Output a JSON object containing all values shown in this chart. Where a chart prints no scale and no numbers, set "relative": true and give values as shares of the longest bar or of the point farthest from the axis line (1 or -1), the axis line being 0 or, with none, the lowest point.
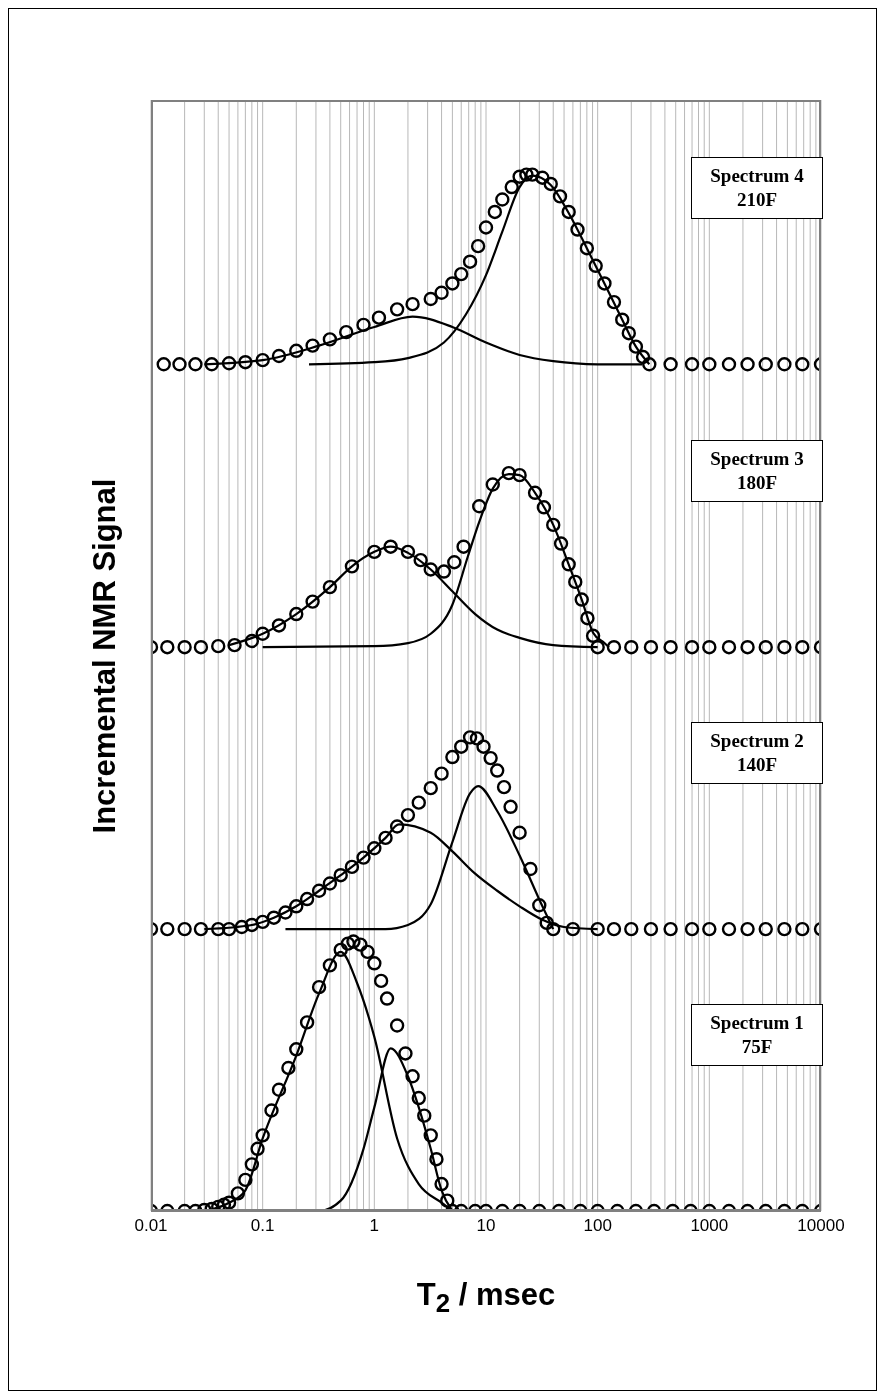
{
  "chart_data": {
    "type": "scatter",
    "relative": true,
    "xlabel": "T$_{2}$ / msec",
    "ylabel": "Incremental NMR Signal",
    "log": "x",
    "grid": "x",
    "xlim": [
      0.01,
      10000
    ],
    "xticks": [
      0.01,
      {
        "value": 0.02,
        "label": null
      },
      {
        "value": 0.03,
        "label": null
      },
      {
        "value": 0.04,
        "label": null
      },
      {
        "value": 0.05,
        "label": null
      },
      {
        "value": 0.06,
        "label": null
      },
      {
        "value": 0.07,
        "label": null
      },
      {
        "value": 0.08,
        "label": null
      },
      {
        "value": 0.09,
        "label": null
      },
      0.1,
      {
        "value": 0.2,
        "label": null
      },
      {
        "value": 0.3,
        "label": null
      },
      {
        "value": 0.4,
        "label": null
      },
      {
        "value": 0.5,
        "label": null
      },
      {
        "value": 0.6,
        "label": null
      },
      {
        "value": 0.7,
        "label": null
      },
      {
        "value": 0.8,
        "label": null
      },
      {
        "value": 0.9,
        "label": null
      },
      1,
      {
        "value": 2,
        "label": null
      },
      {
        "value": 3,
        "label": null
      },
      {
        "value": 4,
        "label": null
      },
      {
        "value": 5,
        "label": null
      },
      {
        "value": 6,
        "label": null
      },
      {
        "value": 7,
        "label": null
      },
      {
        "value": 8,
        "label": null
      },
      {
        "value": 9,
        "label": null
      },
      10,
      {
        "value": 20,
        "label": null
      },
      {
        "value": 30,
        "label": null
      },
      {
        "value": 40,
        "label": null
      },
      {
        "value": 50,
        "label": null
      },
      {
        "value": 60,
        "label": null
      },
      {
        "value": 70,
        "label": null
      },
      {
        "value": 80,
        "label": null
      },
      {
        "value": 90,
        "label": null
      },
      100,
      {
        "value": 200,
        "label": null
      },
      {
        "value": 300,
        "label": null
      },
      {
        "value": 400,
        "label": null
      },
      {
        "value": 500,
        "label": null
      },
      {
        "value": 600,
        "label": null
      },
      {
        "value": 700,
        "label": null
      },
      {
        "value": 800,
        "label": null
      },
      {
        "value": 900,
        "label": null
      },
      1000,
      {
        "value": 2000,
        "label": null
      },
      {
        "value": 3000,
        "label": null
      },
      {
        "value": 4000,
        "label": null
      },
      {
        "value": 5000,
        "label": null
      },
      {
        "value": 6000,
        "label": null
      },
      {
        "value": 7000,
        "label": null
      },
      {
        "value": 8000,
        "label": null
      },
      {
        "value": 9000,
        "label": null
      },
      10000
    ],
    "annotations": [
      "Spectrum 4\n210F",
      "Spectrum 3\n180F",
      "Spectrum 2\n140F",
      "Spectrum 1\n75F"
    ],
    "series": [
      {
        "marker": "circle",
        "color": "#000000",
        "x": [
          0.013,
          0.018,
          0.025,
          0.035,
          0.05,
          0.07,
          0.1,
          0.14,
          0.2,
          0.28,
          0.4,
          0.56,
          0.8,
          1.1,
          1.6,
          2.2,
          3.2,
          4,
          5,
          6,
          7.2,
          8.5,
          10,
          12,
          14,
          17,
          20,
          23,
          26,
          32,
          38,
          46,
          55,
          66,
          80,
          96,
          115,
          140,
          166,
          190,
          220,
          255,
          290,
          450,
          700,
          1000,
          1500,
          2200,
          3200,
          4700,
          6800,
          10000
        ],
        "values": [
          0.817,
          0.817,
          0.817,
          0.817,
          0.818,
          0.819,
          0.821,
          0.825,
          0.83,
          0.835,
          0.841,
          0.848,
          0.855,
          0.862,
          0.87,
          0.875,
          0.88,
          0.886,
          0.895,
          0.904,
          0.916,
          0.931,
          0.949,
          0.964,
          0.976,
          0.988,
          0.998,
          1.0,
          1.0,
          0.997,
          0.991,
          0.979,
          0.964,
          0.947,
          0.929,
          0.912,
          0.895,
          0.877,
          0.86,
          0.847,
          0.834,
          0.824,
          0.817,
          0.817,
          0.817,
          0.817,
          0.817,
          0.817,
          0.817,
          0.817,
          0.817,
          0.817
        ]
      },
      {
        "type": "line",
        "marker": "none",
        "color": "#000000",
        "x": [
          0.03,
          0.1,
          0.32,
          1,
          2.2,
          5,
          10,
          20,
          40,
          100,
          250
        ],
        "values": [
          0.817,
          0.821,
          0.835,
          0.853,
          0.863,
          0.853,
          0.838,
          0.826,
          0.82,
          0.817,
          0.817
        ]
      },
      {
        "type": "line",
        "marker": "none",
        "color": "#000000",
        "x": [
          0.26,
          1,
          2,
          4.2,
          6.6,
          10,
          14,
          20,
          26,
          38,
          55,
          80,
          115,
          166,
          220,
          290
        ],
        "values": [
          0.817,
          0.819,
          0.823,
          0.838,
          0.865,
          0.903,
          0.945,
          0.988,
          0.999,
          0.99,
          0.963,
          0.929,
          0.895,
          0.86,
          0.834,
          0.817
        ]
      },
      {
        "marker": "circle",
        "color": "#000000",
        "x": [
          0.01,
          0.014,
          0.02,
          0.028,
          0.04,
          0.056,
          0.08,
          0.1,
          0.14,
          0.2,
          0.28,
          0.4,
          0.63,
          1,
          1.4,
          2,
          2.6,
          3.2,
          4.2,
          5.2,
          6.3,
          8.7,
          11.5,
          16,
          20,
          27.5,
          33,
          40,
          47,
          55,
          63,
          72,
          81,
          91,
          100,
          140,
          200,
          300,
          450,
          700,
          1000,
          1500,
          2200,
          3200,
          4700,
          6800,
          10000
        ],
        "values": [
          0.544,
          0.544,
          0.544,
          0.544,
          0.545,
          0.546,
          0.55,
          0.557,
          0.565,
          0.576,
          0.588,
          0.602,
          0.622,
          0.636,
          0.641,
          0.636,
          0.628,
          0.619,
          0.617,
          0.626,
          0.641,
          0.68,
          0.701,
          0.712,
          0.71,
          0.693,
          0.679,
          0.662,
          0.644,
          0.624,
          0.607,
          0.59,
          0.572,
          0.555,
          0.544,
          0.544,
          0.544,
          0.544,
          0.544,
          0.544,
          0.544,
          0.544,
          0.544,
          0.544,
          0.544,
          0.544,
          0.544
        ]
      },
      {
        "type": "line",
        "marker": "none",
        "color": "#000000",
        "x": [
          0.05,
          0.1,
          0.2,
          0.4,
          0.63,
          1,
          1.4,
          2,
          3.2,
          5,
          8,
          12.6,
          20,
          40,
          100
        ],
        "values": [
          0.546,
          0.557,
          0.576,
          0.602,
          0.622,
          0.636,
          0.641,
          0.635,
          0.619,
          0.598,
          0.576,
          0.561,
          0.553,
          0.546,
          0.544
        ]
      },
      {
        "type": "line",
        "marker": "none",
        "color": "#000000",
        "x": [
          0.1,
          1,
          2,
          3.2,
          5,
          6.9,
          8.7,
          11.5,
          16,
          20,
          27.5,
          40,
          55,
          72,
          91,
          115,
          126
        ],
        "values": [
          0.544,
          0.545,
          0.548,
          0.557,
          0.585,
          0.632,
          0.665,
          0.697,
          0.711,
          0.71,
          0.693,
          0.662,
          0.624,
          0.59,
          0.558,
          0.548,
          0.544
        ]
      },
      {
        "marker": "circle",
        "color": "#000000",
        "x": [
          0.01,
          0.014,
          0.02,
          0.028,
          0.04,
          0.05,
          0.065,
          0.08,
          0.1,
          0.126,
          0.16,
          0.2,
          0.25,
          0.32,
          0.4,
          0.5,
          0.63,
          0.8,
          1,
          1.26,
          1.6,
          2,
          2.5,
          3.2,
          4,
          5,
          6,
          7.2,
          8.3,
          9.5,
          11,
          12.6,
          14.5,
          16.6,
          20,
          25,
          30,
          35,
          40,
          60,
          100,
          140,
          200,
          300,
          450,
          700,
          1000,
          1500,
          2200,
          3200,
          4700,
          6800,
          10000
        ],
        "values": [
          0.272,
          0.272,
          0.272,
          0.272,
          0.272,
          0.272,
          0.274,
          0.276,
          0.279,
          0.283,
          0.288,
          0.294,
          0.301,
          0.309,
          0.316,
          0.324,
          0.332,
          0.341,
          0.35,
          0.36,
          0.371,
          0.382,
          0.394,
          0.408,
          0.422,
          0.438,
          0.448,
          0.457,
          0.456,
          0.448,
          0.437,
          0.425,
          0.409,
          0.39,
          0.365,
          0.33,
          0.295,
          0.278,
          0.272,
          0.272,
          0.272,
          0.272,
          0.272,
          0.272,
          0.272,
          0.272,
          0.272,
          0.272,
          0.272,
          0.272,
          0.272,
          0.272,
          0.272
        ]
      },
      {
        "type": "line",
        "marker": "none",
        "color": "#000000",
        "x": [
          0.03,
          0.08,
          0.126,
          0.2,
          0.32,
          0.5,
          0.8,
          1.26,
          1.66,
          3.2,
          5,
          7.9,
          12.6,
          20,
          32,
          50,
          100
        ],
        "values": [
          0.272,
          0.276,
          0.283,
          0.294,
          0.309,
          0.324,
          0.341,
          0.36,
          0.373,
          0.365,
          0.347,
          0.326,
          0.309,
          0.294,
          0.281,
          0.274,
          0.272
        ]
      },
      {
        "type": "line",
        "marker": "none",
        "color": "#000000",
        "x": [
          0.16,
          1.26,
          2,
          3.2,
          5,
          7.2,
          8.5,
          12.6,
          20,
          32,
          40
        ],
        "values": [
          0.272,
          0.272,
          0.276,
          0.296,
          0.356,
          0.403,
          0.41,
          0.386,
          0.343,
          0.294,
          0.272
        ]
      },
      {
        "marker": "circle",
        "color": "#000000",
        "x": [
          0.01,
          0.014,
          0.02,
          0.025,
          0.03,
          0.035,
          0.04,
          0.045,
          0.05,
          0.06,
          0.07,
          0.08,
          0.09,
          0.1,
          0.12,
          0.14,
          0.17,
          0.2,
          0.25,
          0.32,
          0.4,
          0.5,
          0.58,
          0.65,
          0.75,
          0.87,
          1,
          1.15,
          1.3,
          1.6,
          1.9,
          2.2,
          2.5,
          2.8,
          3.2,
          3.6,
          4,
          4.5,
          5,
          6,
          8,
          10,
          14,
          20,
          30,
          45,
          70,
          100,
          150,
          220,
          320,
          470,
          680,
          1000,
          1500,
          2200,
          3200,
          4700,
          6800,
          10000
        ],
        "values": [
          0,
          0,
          0,
          0,
          0.001,
          0.002,
          0.004,
          0.006,
          0.008,
          0.017,
          0.03,
          0.045,
          0.06,
          0.073,
          0.097,
          0.117,
          0.138,
          0.156,
          0.182,
          0.216,
          0.237,
          0.252,
          0.258,
          0.26,
          0.257,
          0.25,
          0.239,
          0.222,
          0.205,
          0.179,
          0.152,
          0.13,
          0.109,
          0.092,
          0.073,
          0.05,
          0.026,
          0.01,
          0,
          0,
          0,
          0,
          0,
          0,
          0,
          0,
          0,
          0,
          0,
          0,
          0,
          0,
          0,
          0,
          0,
          0,
          0,
          0,
          0,
          0
        ]
      },
      {
        "type": "line",
        "marker": "none",
        "color": "#000000",
        "x": [
          0.03,
          0.05,
          0.07,
          0.1,
          0.2,
          0.32,
          0.5,
          0.7,
          1,
          1.6,
          2.5,
          4,
          5
        ],
        "values": [
          0,
          0.008,
          0.02,
          0.07,
          0.15,
          0.21,
          0.25,
          0.22,
          0.168,
          0.07,
          0.026,
          0.008,
          0
        ]
      },
      {
        "type": "line",
        "marker": "none",
        "color": "#000000",
        "x": [
          0.1,
          0.32,
          0.5,
          0.8,
          1,
          1.4,
          2,
          2.5,
          3.2,
          4,
          5
        ],
        "values": [
          0,
          0,
          0.01,
          0.06,
          0.1,
          0.157,
          0.13,
          0.1,
          0.06,
          0.02,
          0
        ]
      }
    ]
  }
}
